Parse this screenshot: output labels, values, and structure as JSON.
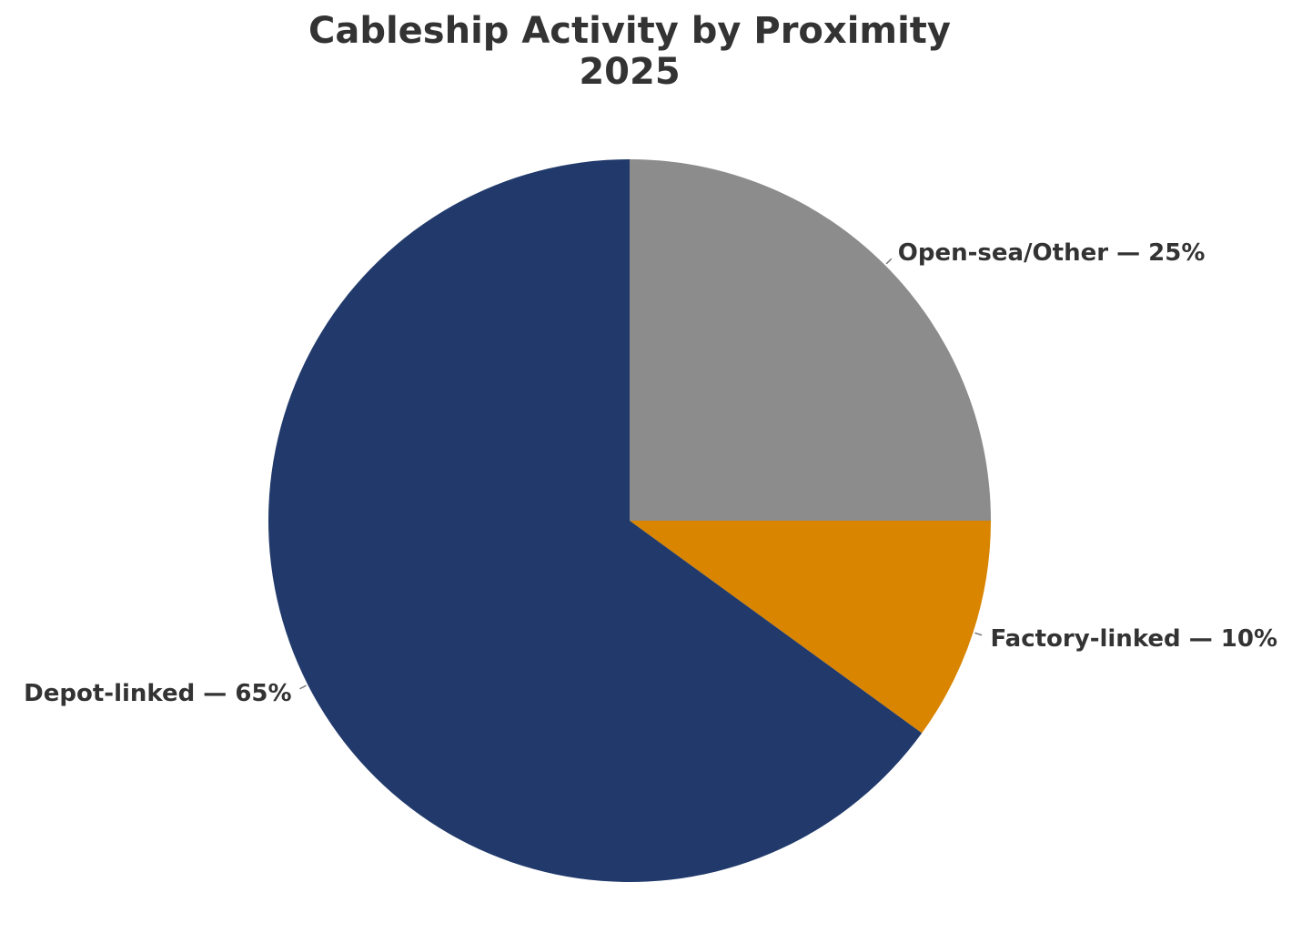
{
  "chart_data": {
    "type": "pie",
    "title_line1": "Cableship Activity by Proximity",
    "title_line2": "2025",
    "slices": [
      {
        "label": "Open-sea/Other — 25%",
        "category": "Open-sea/Other",
        "value": 25,
        "color": "#8c8c8c"
      },
      {
        "label": "Factory-linked — 10%",
        "category": "Factory-linked",
        "value": 10,
        "color": "#d98500"
      },
      {
        "label": "Depot-linked — 65%",
        "category": "Depot-linked",
        "value": 65,
        "color": "#213a6b"
      }
    ],
    "start_angle": "12 o'clock",
    "direction": "clockwise"
  }
}
